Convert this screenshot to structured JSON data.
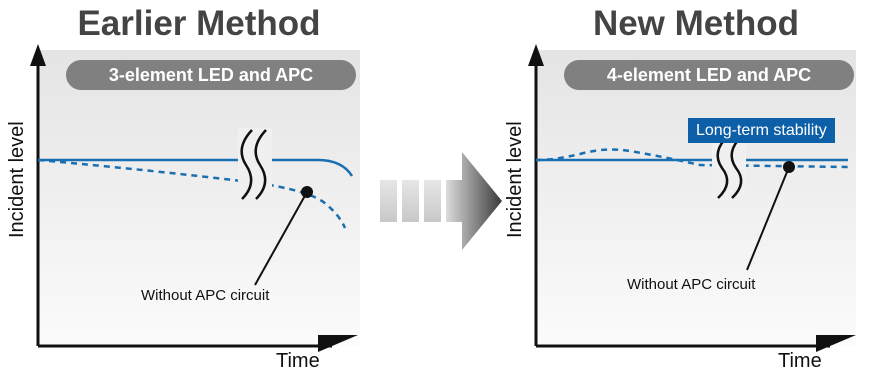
{
  "left_panel": {
    "title": "Earlier Method",
    "badge": "3-element LED and APC",
    "y_axis_label": "Incident level",
    "x_axis_label": "Time",
    "annotation": "Without APC circuit"
  },
  "right_panel": {
    "title": "New Method",
    "badge": "4-element LED and APC",
    "y_axis_label": "Incident level",
    "x_axis_label": "Time",
    "annotation": "Without APC circuit",
    "stability_label": "Long-term stability"
  },
  "colors": {
    "curve_blue": "#1a6fb0",
    "badge_gray": "#808080",
    "stability_box": "#0d5fa8",
    "title_gray": "#444444"
  }
}
